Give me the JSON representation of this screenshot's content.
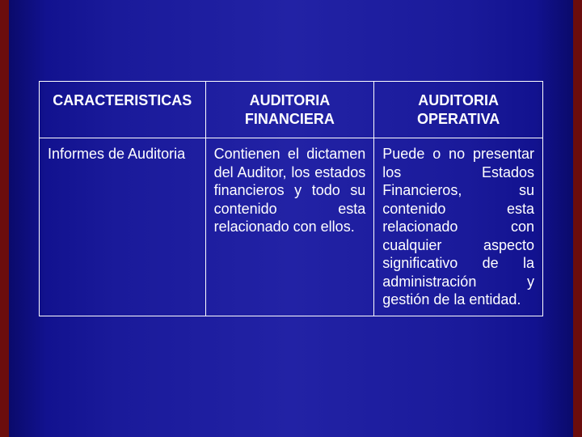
{
  "table": {
    "type": "table",
    "border_color": "#ffffff",
    "text_color": "#ffffff",
    "font_size_pt": 14,
    "header_font_weight": "bold",
    "columns": [
      {
        "label": "CARACTERISTICAS",
        "width_pct": 33
      },
      {
        "label": "AUDITORIA FINANCIERA",
        "width_pct": 33.5
      },
      {
        "label": "AUDITORIA OPERATIVA",
        "width_pct": 33.5
      }
    ],
    "rows": [
      {
        "label": "Informes de Auditoria",
        "cells": [
          "Contienen el dictamen del Auditor, los estados financieros y todo su contenido esta relacionado con ellos.",
          "Puede o no presentar los Estados Financieros, su contenido esta relacionado con cualquier aspecto significativo de la administración y gestión de la entidad."
        ]
      }
    ]
  },
  "background": {
    "gradient_edge_color": "#6b0d0d",
    "gradient_main_from": "#0a0a6b",
    "gradient_main_mid": "#2222a5"
  }
}
